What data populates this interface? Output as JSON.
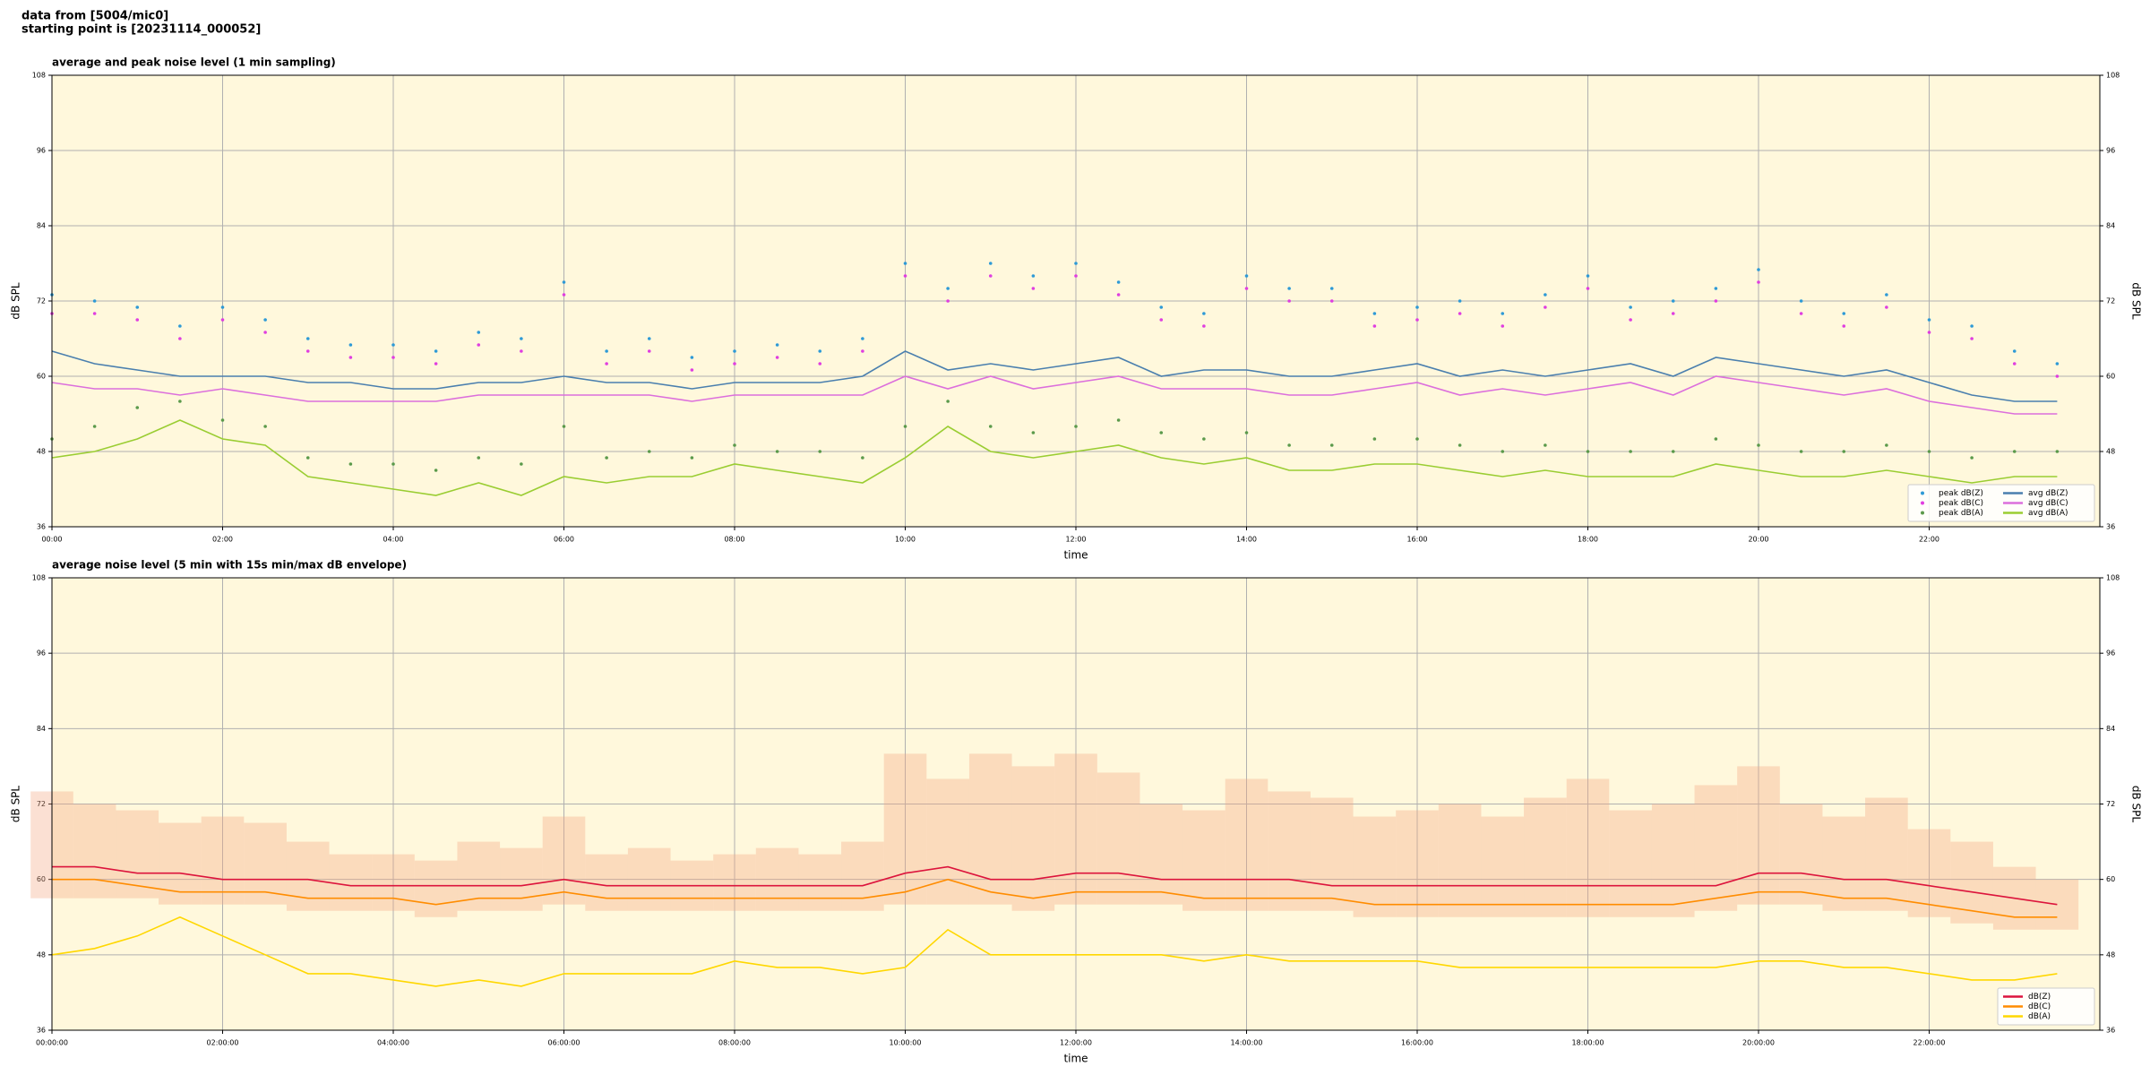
{
  "header": {
    "lines": [
      "data from [5004/mic0]",
      "starting point is [20231114_000052]"
    ]
  },
  "chart_data": [
    {
      "type": "line",
      "title": "average and peak noise level (1 min sampling)",
      "xlabel": "time",
      "ylabel": "dB SPL",
      "y2label": "dB SPL",
      "x": [
        "00:00",
        "00:30",
        "01:00",
        "01:30",
        "02:00",
        "02:30",
        "03:00",
        "03:30",
        "04:00",
        "04:30",
        "05:00",
        "05:30",
        "06:00",
        "06:30",
        "07:00",
        "07:30",
        "08:00",
        "08:30",
        "09:00",
        "09:30",
        "10:00",
        "10:30",
        "11:00",
        "11:30",
        "12:00",
        "12:30",
        "13:00",
        "13:30",
        "14:00",
        "14:30",
        "15:00",
        "15:30",
        "16:00",
        "16:30",
        "17:00",
        "17:30",
        "18:00",
        "18:30",
        "19:00",
        "19:30",
        "20:00",
        "20:30",
        "21:00",
        "21:30",
        "22:00",
        "22:30",
        "23:00",
        "23:30"
      ],
      "xlim": [
        "00:00",
        "24:00"
      ],
      "xticks": [
        "00:00",
        "02:00",
        "04:00",
        "06:00",
        "08:00",
        "10:00",
        "12:00",
        "14:00",
        "16:00",
        "18:00",
        "20:00",
        "22:00"
      ],
      "ylim": [
        36,
        108
      ],
      "yticks": [
        36,
        48,
        60,
        72,
        84,
        96,
        108
      ],
      "y2lim": [
        36,
        108
      ],
      "y2ticks": [
        36,
        48,
        60,
        72,
        84,
        96,
        108
      ],
      "grid": true,
      "legend": "lower right",
      "series": [
        {
          "name": "peak dB(Z)",
          "mode": "markers",
          "color": "#2e9ad6",
          "values": [
            73,
            72,
            71,
            68,
            71,
            69,
            66,
            65,
            65,
            64,
            67,
            66,
            75,
            64,
            66,
            63,
            64,
            65,
            64,
            66,
            78,
            74,
            78,
            76,
            78,
            75,
            71,
            70,
            76,
            74,
            74,
            70,
            71,
            72,
            70,
            73,
            76,
            71,
            72,
            74,
            77,
            72,
            70,
            73,
            69,
            68,
            64,
            62
          ]
        },
        {
          "name": "peak dB(C)",
          "mode": "markers",
          "color": "#e03ee0",
          "values": [
            70,
            70,
            69,
            66,
            69,
            67,
            64,
            63,
            63,
            62,
            65,
            64,
            73,
            62,
            64,
            61,
            62,
            63,
            62,
            64,
            76,
            72,
            76,
            74,
            76,
            73,
            69,
            68,
            74,
            72,
            72,
            68,
            69,
            70,
            68,
            71,
            74,
            69,
            70,
            72,
            75,
            70,
            68,
            71,
            67,
            66,
            62,
            60
          ]
        },
        {
          "name": "peak dB(A)",
          "mode": "markers",
          "color": "#5b9a4b",
          "values": [
            50,
            52,
            55,
            56,
            53,
            52,
            47,
            46,
            46,
            45,
            47,
            46,
            52,
            47,
            48,
            47,
            49,
            48,
            48,
            47,
            52,
            56,
            52,
            51,
            52,
            53,
            51,
            50,
            51,
            49,
            49,
            50,
            50,
            49,
            48,
            49,
            48,
            48,
            48,
            50,
            49,
            48,
            48,
            49,
            48,
            47,
            48,
            48
          ]
        },
        {
          "name": "avg dB(Z)",
          "mode": "lines",
          "color": "#4a7fae",
          "values": [
            64,
            62,
            61,
            60,
            60,
            60,
            59,
            59,
            58,
            58,
            59,
            59,
            60,
            59,
            59,
            58,
            59,
            59,
            59,
            60,
            64,
            61,
            62,
            61,
            62,
            63,
            60,
            61,
            61,
            60,
            60,
            61,
            62,
            60,
            61,
            60,
            61,
            62,
            60,
            63,
            62,
            61,
            60,
            61,
            59,
            57,
            56,
            56
          ]
        },
        {
          "name": "avg dB(C)",
          "mode": "lines",
          "color": "#dc6fdc",
          "values": [
            59,
            58,
            58,
            57,
            58,
            57,
            56,
            56,
            56,
            56,
            57,
            57,
            57,
            57,
            57,
            56,
            57,
            57,
            57,
            57,
            60,
            58,
            60,
            58,
            59,
            60,
            58,
            58,
            58,
            57,
            57,
            58,
            59,
            57,
            58,
            57,
            58,
            59,
            57,
            60,
            59,
            58,
            57,
            58,
            56,
            55,
            54,
            54
          ]
        },
        {
          "name": "avg dB(A)",
          "mode": "lines",
          "color": "#9acd32",
          "values": [
            47,
            48,
            50,
            53,
            50,
            49,
            44,
            43,
            42,
            41,
            43,
            41,
            44,
            43,
            44,
            44,
            46,
            45,
            44,
            43,
            47,
            52,
            48,
            47,
            48,
            49,
            47,
            46,
            47,
            45,
            45,
            46,
            46,
            45,
            44,
            45,
            44,
            44,
            44,
            46,
            45,
            44,
            44,
            45,
            44,
            43,
            44,
            44
          ]
        }
      ]
    },
    {
      "type": "line",
      "title": "average noise level (5 min with 15s min/max dB envelope)",
      "xlabel": "time",
      "ylabel": "dB SPL",
      "y2label": "dB SPL",
      "x": [
        "00:00:00",
        "00:30:00",
        "01:00:00",
        "01:30:00",
        "02:00:00",
        "02:30:00",
        "03:00:00",
        "03:30:00",
        "04:00:00",
        "04:30:00",
        "05:00:00",
        "05:30:00",
        "06:00:00",
        "06:30:00",
        "07:00:00",
        "07:30:00",
        "08:00:00",
        "08:30:00",
        "09:00:00",
        "09:30:00",
        "10:00:00",
        "10:30:00",
        "11:00:00",
        "11:30:00",
        "12:00:00",
        "12:30:00",
        "13:00:00",
        "13:30:00",
        "14:00:00",
        "14:30:00",
        "15:00:00",
        "15:30:00",
        "16:00:00",
        "16:30:00",
        "17:00:00",
        "17:30:00",
        "18:00:00",
        "18:30:00",
        "19:00:00",
        "19:30:00",
        "20:00:00",
        "20:30:00",
        "21:00:00",
        "21:30:00",
        "22:00:00",
        "22:30:00",
        "23:00:00",
        "23:30:00"
      ],
      "xlim": [
        "00:00:00",
        "24:00:00"
      ],
      "xticks": [
        "00:00:00",
        "02:00:00",
        "04:00:00",
        "06:00:00",
        "08:00:00",
        "10:00:00",
        "12:00:00",
        "14:00:00",
        "16:00:00",
        "18:00:00",
        "20:00:00",
        "22:00:00"
      ],
      "ylim": [
        36,
        108
      ],
      "yticks": [
        36,
        48,
        60,
        72,
        84,
        96,
        108
      ],
      "y2lim": [
        36,
        108
      ],
      "y2ticks": [
        36,
        48,
        60,
        72,
        84,
        96,
        108
      ],
      "grid": true,
      "legend": "lower right",
      "envelope": {
        "color": "#f4a582",
        "upper": [
          74,
          72,
          71,
          69,
          70,
          69,
          66,
          64,
          64,
          63,
          66,
          65,
          70,
          64,
          65,
          63,
          64,
          65,
          64,
          66,
          80,
          76,
          80,
          78,
          80,
          77,
          72,
          71,
          76,
          74,
          73,
          70,
          71,
          72,
          70,
          73,
          76,
          71,
          72,
          75,
          78,
          72,
          70,
          73,
          68,
          66,
          62,
          60
        ],
        "lower": [
          57,
          57,
          57,
          56,
          56,
          56,
          55,
          55,
          55,
          54,
          55,
          55,
          56,
          55,
          55,
          55,
          55,
          55,
          55,
          55,
          56,
          56,
          56,
          55,
          56,
          56,
          56,
          55,
          55,
          55,
          55,
          54,
          54,
          54,
          54,
          54,
          54,
          54,
          54,
          55,
          56,
          56,
          55,
          55,
          54,
          53,
          52,
          52
        ]
      },
      "series": [
        {
          "name": "dB(Z)",
          "mode": "lines",
          "color": "#dc143c",
          "values": [
            62,
            62,
            61,
            61,
            60,
            60,
            60,
            59,
            59,
            59,
            59,
            59,
            60,
            59,
            59,
            59,
            59,
            59,
            59,
            59,
            61,
            62,
            60,
            60,
            61,
            61,
            60,
            60,
            60,
            60,
            59,
            59,
            59,
            59,
            59,
            59,
            59,
            59,
            59,
            59,
            61,
            61,
            60,
            60,
            59,
            58,
            57,
            56
          ]
        },
        {
          "name": "dB(C)",
          "mode": "lines",
          "color": "#ff8c00",
          "values": [
            60,
            60,
            59,
            58,
            58,
            58,
            57,
            57,
            57,
            56,
            57,
            57,
            58,
            57,
            57,
            57,
            57,
            57,
            57,
            57,
            58,
            60,
            58,
            57,
            58,
            58,
            58,
            57,
            57,
            57,
            57,
            56,
            56,
            56,
            56,
            56,
            56,
            56,
            56,
            57,
            58,
            58,
            57,
            57,
            56,
            55,
            54,
            54
          ]
        },
        {
          "name": "dB(A)",
          "mode": "lines",
          "color": "#ffd700",
          "values": [
            48,
            49,
            51,
            54,
            51,
            48,
            45,
            45,
            44,
            43,
            44,
            43,
            45,
            45,
            45,
            45,
            47,
            46,
            46,
            45,
            46,
            52,
            48,
            48,
            48,
            48,
            48,
            47,
            48,
            47,
            47,
            47,
            47,
            46,
            46,
            46,
            46,
            46,
            46,
            46,
            47,
            47,
            46,
            46,
            45,
            44,
            44,
            45
          ]
        }
      ]
    }
  ]
}
